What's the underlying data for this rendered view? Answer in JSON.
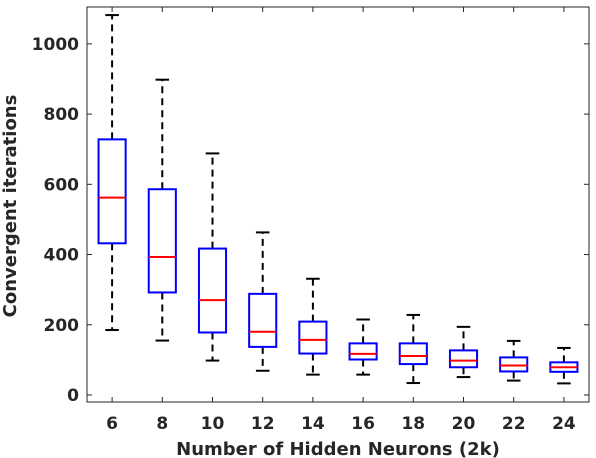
{
  "chart_data": {
    "type": "boxplot",
    "xlabel": "Number of Hidden Neurons (2k)",
    "ylabel": "Convergent iterations",
    "categories": [
      "6",
      "8",
      "10",
      "12",
      "14",
      "16",
      "18",
      "20",
      "22",
      "24"
    ],
    "yticks": [
      0,
      200,
      400,
      600,
      800,
      1000
    ],
    "ylim": [
      -20,
      1105
    ],
    "grid": false,
    "boxes": [
      {
        "category": "6",
        "whisker_low": 185,
        "q1": 432,
        "median": 562,
        "q3": 728,
        "whisker_high": 1082
      },
      {
        "category": "8",
        "whisker_low": 155,
        "q1": 292,
        "median": 393,
        "q3": 586,
        "whisker_high": 898
      },
      {
        "category": "10",
        "whisker_low": 98,
        "q1": 178,
        "median": 270,
        "q3": 417,
        "whisker_high": 688
      },
      {
        "category": "12",
        "whisker_low": 69,
        "q1": 137,
        "median": 180,
        "q3": 288,
        "whisker_high": 463
      },
      {
        "category": "14",
        "whisker_low": 58,
        "q1": 118,
        "median": 157,
        "q3": 209,
        "whisker_high": 331
      },
      {
        "category": "16",
        "whisker_low": 58,
        "q1": 101,
        "median": 117,
        "q3": 147,
        "whisker_high": 215
      },
      {
        "category": "18",
        "whisker_low": 34,
        "q1": 88,
        "median": 111,
        "q3": 147,
        "whisker_high": 228
      },
      {
        "category": "20",
        "whisker_low": 51,
        "q1": 79,
        "median": 98,
        "q3": 127,
        "whisker_high": 194
      },
      {
        "category": "22",
        "whisker_low": 41,
        "q1": 67,
        "median": 84,
        "q3": 107,
        "whisker_high": 154
      },
      {
        "category": "24",
        "whisker_low": 33,
        "q1": 66,
        "median": 79,
        "q3": 93,
        "whisker_high": 134
      }
    ],
    "colors": {
      "box": "#0000ff",
      "median": "#ff0000",
      "whisker": "#000000",
      "axis": "#262626"
    }
  }
}
